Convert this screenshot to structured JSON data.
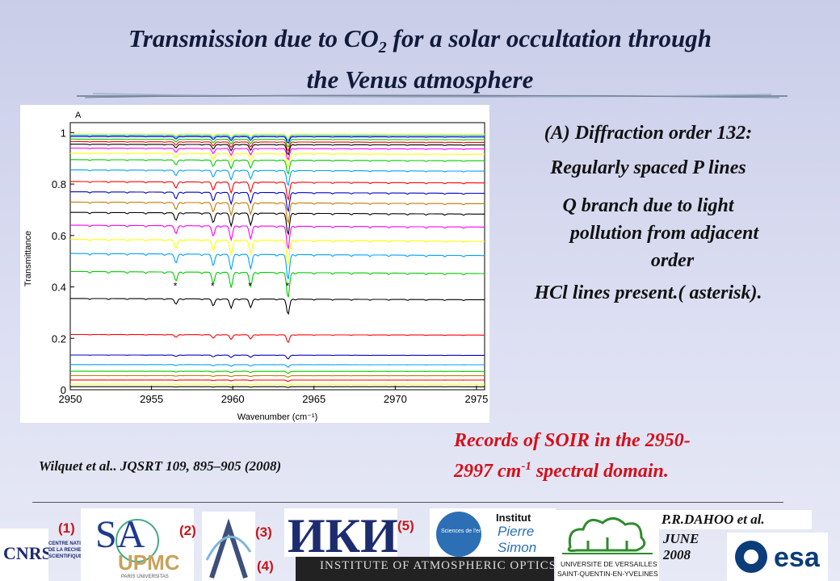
{
  "slide": {
    "title_part1": "Transmission due to CO",
    "title_sub": "2",
    "title_part2": " for a solar occultation through",
    "title_line2": "the Venus atmosphere"
  },
  "notes": {
    "line1": "(A) Diffraction order 132:",
    "line2": "Regularly spaced P lines",
    "line3a": "Q branch due to light",
    "line3b": "pollution from adjacent",
    "line3c": "order",
    "line4": "HCl  lines present.( asterisk)."
  },
  "records": {
    "text_a": "Records of SOIR in the 2950-",
    "text_b": "2997 cm",
    "sup": "-1",
    "text_c": " spectral domain."
  },
  "citation": "Wilquet  et al.. JQSRT 109, 895–905 (2008)",
  "footer": {
    "author": "P.R.DAHOO et al.",
    "month": "JUNE",
    "year": "2008",
    "markers": [
      "(1)",
      "(2)",
      "(3)",
      "(4)",
      "(5)"
    ],
    "logos": {
      "cnrs": "CNRS",
      "cnrs_caption": "CENTRE NATIONAL DE LA RECHERCHE SCIENTIFIQUE",
      "sa": "SA",
      "upmc": "UPMC",
      "upmc_caption": "PARIS UNIVERSITAS",
      "iki": "ИКИ",
      "iao": "INSTITUTE OF ATMOSPHERIC OPTICS",
      "ipsl_a": "Sciences de l'environnement",
      "ipsl_b": "Institut",
      "ipsl_c": "Pierre",
      "ipsl_d": "Simon",
      "uvsq_a": "UNIVERSITE DE VERSAILLES",
      "uvsq_b": "SAINT-QUENTIN-EN-YVELINES",
      "esa": "esa"
    }
  },
  "chart_data": {
    "type": "line",
    "panel_label": "A",
    "xlabel": "Wavenumber (cm⁻¹)",
    "ylabel": "Transmittance",
    "xlim": [
      2950,
      2975.5
    ],
    "ylim": [
      0,
      1.02
    ],
    "xticks": [
      2950,
      2955,
      2960,
      2965,
      2970,
      2975
    ],
    "yticks": [
      0,
      0.2,
      0.4,
      0.6,
      0.8,
      1
    ],
    "asterisk_label": "*",
    "hcl_lines": [
      2956.5,
      2958.8,
      2961.1,
      2963.4
    ],
    "series": [
      {
        "color": "#ffff00",
        "baseline": 0.995,
        "depth": 0.015
      },
      {
        "color": "#00a0ff",
        "baseline": 0.99,
        "depth": 0.02
      },
      {
        "color": "#0000c8",
        "baseline": 0.985,
        "depth": 0.025
      },
      {
        "color": "#00cc00",
        "baseline": 0.975,
        "depth": 0.03
      },
      {
        "color": "#ff0000",
        "baseline": 0.965,
        "depth": 0.035
      },
      {
        "color": "#000000",
        "baseline": 0.955,
        "depth": 0.04
      },
      {
        "color": "#ff00ff",
        "baseline": 0.94,
        "depth": 0.045
      },
      {
        "color": "#ffff00",
        "baseline": 0.92,
        "depth": 0.05
      },
      {
        "color": "#00cc00",
        "baseline": 0.895,
        "depth": 0.055
      },
      {
        "color": "#00a0ff",
        "baseline": 0.855,
        "depth": 0.06
      },
      {
        "color": "#ff0000",
        "baseline": 0.81,
        "depth": 0.07
      },
      {
        "color": "#0000c8",
        "baseline": 0.77,
        "depth": 0.075
      },
      {
        "color": "#c87800",
        "baseline": 0.73,
        "depth": 0.08
      },
      {
        "color": "#000000",
        "baseline": 0.69,
        "depth": 0.085
      },
      {
        "color": "#ff00ff",
        "baseline": 0.64,
        "depth": 0.09
      },
      {
        "color": "#ffff00",
        "baseline": 0.585,
        "depth": 0.095
      },
      {
        "color": "#00a0ff",
        "baseline": 0.53,
        "depth": 0.1
      },
      {
        "color": "#00cc00",
        "baseline": 0.46,
        "depth": 0.1
      },
      {
        "color": "#000000",
        "baseline": 0.355,
        "depth": 0.06
      },
      {
        "color": "#ff0000",
        "baseline": 0.215,
        "depth": 0.03
      },
      {
        "color": "#0000c8",
        "baseline": 0.135,
        "depth": 0.015
      },
      {
        "color": "#00a0ff",
        "baseline": 0.098,
        "depth": 0.01
      },
      {
        "color": "#00cc00",
        "baseline": 0.072,
        "depth": 0.008
      },
      {
        "color": "#c87800",
        "baseline": 0.055,
        "depth": 0.006
      },
      {
        "color": "#ff0000",
        "baseline": 0.038,
        "depth": 0.005
      },
      {
        "color": "#ffff00",
        "baseline": 0.022,
        "depth": 0.004
      },
      {
        "color": "#000000",
        "baseline": 0.012,
        "depth": 0.003
      }
    ]
  }
}
